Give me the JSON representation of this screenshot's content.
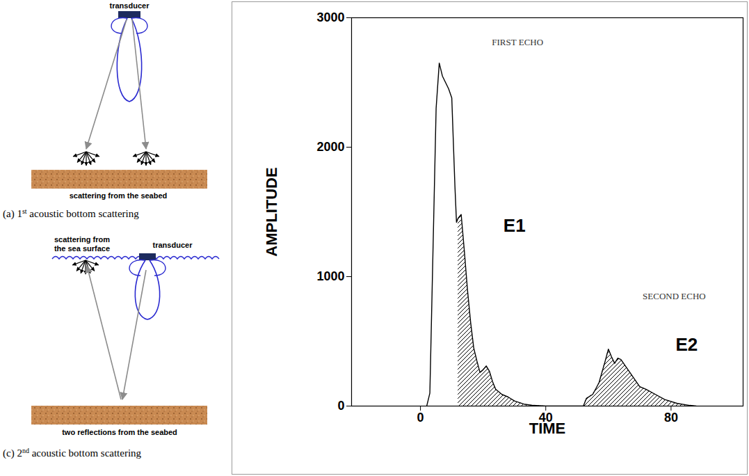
{
  "chart_data": {
    "type": "area",
    "x_label": "TIME",
    "y_label": "AMPLITUDE",
    "x": [
      2,
      3,
      4,
      5,
      6,
      7,
      8,
      9,
      10,
      11,
      11.5,
      12,
      13,
      14,
      15,
      16,
      17,
      18,
      19,
      20,
      21,
      22,
      23,
      24,
      26,
      28,
      30,
      33,
      36,
      40,
      52,
      53,
      55,
      57,
      59,
      60,
      61,
      62,
      63,
      64,
      66,
      68,
      70,
      72,
      75,
      78,
      82,
      86,
      88
    ],
    "values": [
      0,
      100,
      1200,
      2300,
      2650,
      2550,
      2500,
      2450,
      2380,
      1700,
      1420,
      1450,
      1480,
      1200,
      900,
      650,
      450,
      350,
      260,
      280,
      310,
      270,
      190,
      130,
      90,
      70,
      40,
      15,
      5,
      0,
      0,
      60,
      90,
      180,
      350,
      440,
      380,
      330,
      370,
      360,
      290,
      220,
      150,
      130,
      90,
      50,
      20,
      5,
      0
    ],
    "color": "#000000",
    "shaded": [
      {
        "name": "E1",
        "from": 12,
        "to": 40,
        "label_x": 30,
        "label_y": 1390
      },
      {
        "name": "E2",
        "from": 52,
        "to": 88,
        "label_x": 85,
        "label_y": 470
      }
    ],
    "notes": [
      {
        "text": "FIRST ECHO",
        "x": 31,
        "y": 2810
      },
      {
        "text": "SECOND ECHO",
        "x": 81,
        "y": 850
      }
    ],
    "xlim": [
      -22,
      103
    ],
    "xticks": [
      0,
      40,
      80
    ],
    "ylim": [
      0,
      3000
    ],
    "yticks": [
      0,
      1000,
      2000,
      3000
    ],
    "grid": false
  },
  "diagram": {
    "panels": [
      {
        "caption": [
          "(a) 1",
          "st",
          " acoustic bottom scattering"
        ],
        "transducer": "transducer",
        "seabed": "scattering from the seabed"
      },
      {
        "caption": [
          "(c) 2",
          "nd",
          " acoustic bottom scattering"
        ],
        "transducer": "transducer",
        "surface": [
          "scattering from",
          "the sea surface"
        ],
        "seabed": "two reflections from the seabed"
      }
    ]
  }
}
